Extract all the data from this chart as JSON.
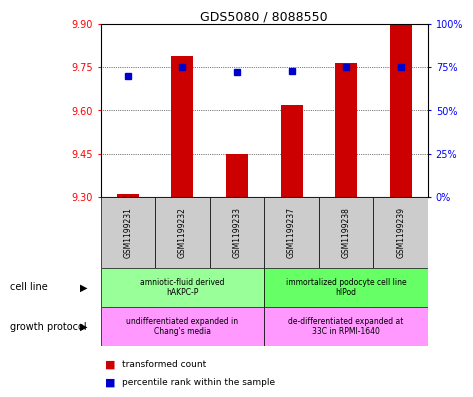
{
  "title": "GDS5080 / 8088550",
  "samples": [
    "GSM1199231",
    "GSM1199232",
    "GSM1199233",
    "GSM1199237",
    "GSM1199238",
    "GSM1199239"
  ],
  "transformed_counts": [
    9.31,
    9.79,
    9.45,
    9.62,
    9.765,
    9.9
  ],
  "percentile_ranks": [
    70,
    75,
    72,
    73,
    75,
    75
  ],
  "ylim_left": [
    9.3,
    9.9
  ],
  "ylim_right": [
    0,
    100
  ],
  "yticks_left": [
    9.3,
    9.45,
    9.6,
    9.75,
    9.9
  ],
  "yticks_right": [
    0,
    25,
    50,
    75,
    100
  ],
  "bar_color": "#cc0000",
  "dot_color": "#0000cc",
  "bar_width": 0.4,
  "cell_line_group1": "amniotic-fluid derived\nhAKPC-P",
  "cell_line_group2": "immortalized podocyte cell line\nhIPod",
  "growth_protocol_group1": "undifferentiated expanded in\nChang's media",
  "growth_protocol_group2": "de-differentiated expanded at\n33C in RPMI-1640",
  "cell_line_bg1": "#99ff99",
  "cell_line_bg2": "#66ff66",
  "growth_bg1": "#ff99ff",
  "growth_bg2": "#ff99ff",
  "sample_bg": "#cccccc",
  "legend_label1": "transformed count",
  "legend_label2": "percentile rank within the sample",
  "cell_line_label": "cell line",
  "growth_protocol_label": "growth protocol"
}
